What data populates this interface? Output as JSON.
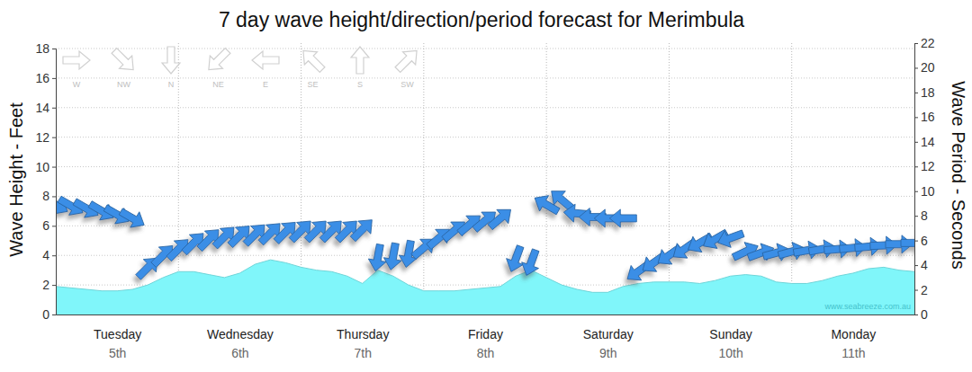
{
  "chart_data": {
    "type": "combo",
    "title": "7 day wave height/direction/period forecast for Merimbula",
    "y_label": "Wave Height - Feet",
    "y2_label": "Wave Period - Seconds",
    "watermark": "www.seabreeze.com.au",
    "categories": [
      null,
      null,
      null,
      null,
      "Tuesday",
      null,
      null,
      null,
      null,
      null,
      null,
      null,
      "Wednesday",
      null,
      null,
      null,
      null,
      null,
      null,
      null,
      "Thursday",
      null,
      null,
      null,
      null,
      null,
      null,
      null,
      "Friday",
      null,
      null,
      null,
      null,
      null,
      null,
      null,
      "Saturday",
      null,
      null,
      null,
      null,
      null,
      null,
      null,
      "Sunday",
      null,
      null,
      null,
      null,
      null,
      null,
      null,
      "Monday",
      null,
      null,
      null,
      null
    ],
    "sublabels": [
      null,
      null,
      null,
      null,
      "5th",
      null,
      null,
      null,
      null,
      null,
      null,
      null,
      "6th",
      null,
      null,
      null,
      null,
      null,
      null,
      null,
      "7th",
      null,
      null,
      null,
      null,
      null,
      null,
      null,
      "8th",
      null,
      null,
      null,
      null,
      null,
      null,
      null,
      "9th",
      null,
      null,
      null,
      null,
      null,
      null,
      null,
      "10th",
      null,
      null,
      null,
      null,
      null,
      null,
      null,
      "11th",
      null,
      null,
      null,
      null
    ],
    "ylim": [
      0,
      18
    ],
    "yticks": [
      0,
      2,
      4,
      6,
      8,
      10,
      12,
      14,
      16,
      18
    ],
    "y2lim": [
      0,
      22
    ],
    "y2ticks": [
      0,
      2,
      4,
      6,
      8,
      10,
      12,
      14,
      16,
      18,
      20,
      22
    ],
    "grid": true,
    "compass": [
      {
        "label": "W",
        "direction": 270
      },
      {
        "label": "NW",
        "direction": 315
      },
      {
        "label": "N",
        "direction": 0
      },
      {
        "label": "NE",
        "direction": 45
      },
      {
        "label": "E",
        "direction": 90
      },
      {
        "label": "SE",
        "direction": 135
      },
      {
        "label": "S",
        "direction": 180
      },
      {
        "label": "SW",
        "direction": 225
      }
    ],
    "series": [
      {
        "type": "area",
        "color": "#80f6fa",
        "values": [
          1.9,
          1.8,
          1.7,
          1.6,
          1.6,
          1.7,
          2.0,
          2.5,
          2.9,
          2.9,
          2.7,
          2.5,
          2.8,
          3.4,
          3.7,
          3.5,
          3.2,
          3.0,
          2.9,
          2.6,
          2.1,
          3.0,
          2.6,
          2.0,
          1.6,
          1.6,
          1.6,
          1.7,
          1.8,
          1.9,
          2.6,
          3.0,
          2.5,
          2.0,
          1.7,
          1.5,
          1.5,
          1.9,
          2.1,
          2.2,
          2.2,
          2.2,
          2.1,
          2.3,
          2.6,
          2.7,
          2.6,
          2.2,
          2.1,
          2.1,
          2.3,
          2.6,
          2.8,
          3.1,
          3.2,
          3.0,
          2.9
        ]
      },
      {
        "type": "arrow",
        "axis": "y2",
        "color": "#3a8ee6",
        "values": [
          8.9,
          8.8,
          8.6,
          8.4,
          8.1,
          7.8,
          3.8,
          4.8,
          5.3,
          5.8,
          6.1,
          6.3,
          6.4,
          6.5,
          6.6,
          6.7,
          6.8,
          6.8,
          6.8,
          6.8,
          6.9,
          4.6,
          4.7,
          4.9,
          5.4,
          6.2,
          6.8,
          7.3,
          7.6,
          7.8,
          4.5,
          4.2,
          8.9,
          9.3,
          8.2,
          7.9,
          7.8,
          7.8,
          3.5,
          4.2,
          4.8,
          5.3,
          5.8,
          6.1,
          6.2,
          5.1,
          5.0,
          5.0,
          5.1,
          5.2,
          5.3,
          5.3,
          5.4,
          5.5,
          5.6,
          5.7,
          5.8
        ],
        "direction": [
          300,
          300,
          300,
          300,
          300,
          300,
          225,
          225,
          225,
          225,
          225,
          225,
          225,
          225,
          225,
          225,
          225,
          225,
          225,
          225,
          225,
          10,
          10,
          10,
          230,
          230,
          230,
          230,
          230,
          230,
          20,
          20,
          120,
          130,
          95,
          90,
          90,
          90,
          55,
          55,
          55,
          55,
          60,
          60,
          70,
          245,
          250,
          255,
          255,
          260,
          260,
          265,
          265,
          265,
          268,
          270,
          270
        ]
      }
    ]
  }
}
